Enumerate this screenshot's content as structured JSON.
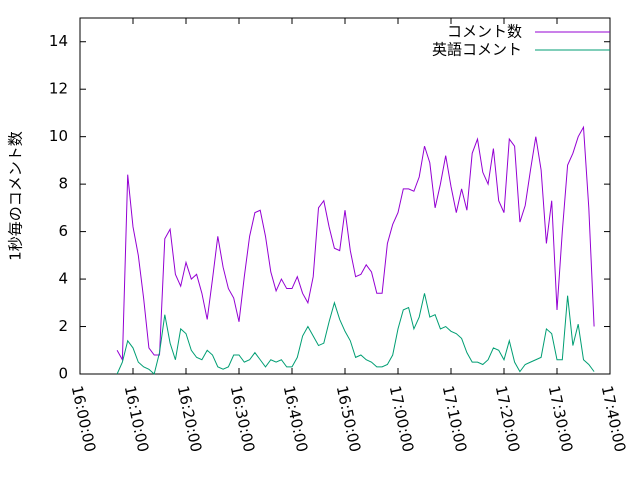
{
  "chart_data": {
    "type": "line",
    "ylabel": "1秒毎のコメント数",
    "x": [
      "16:07:00",
      "16:08:00",
      "16:09:00",
      "16:10:00",
      "16:11:00",
      "16:12:00",
      "16:13:00",
      "16:14:00",
      "16:15:00",
      "16:16:00",
      "16:17:00",
      "16:18:00",
      "16:19:00",
      "16:20:00",
      "16:21:00",
      "16:22:00",
      "16:23:00",
      "16:24:00",
      "16:25:00",
      "16:26:00",
      "16:27:00",
      "16:28:00",
      "16:29:00",
      "16:30:00",
      "16:31:00",
      "16:32:00",
      "16:33:00",
      "16:34:00",
      "16:35:00",
      "16:36:00",
      "16:37:00",
      "16:38:00",
      "16:39:00",
      "16:40:00",
      "16:41:00",
      "16:42:00",
      "16:43:00",
      "16:44:00",
      "16:45:00",
      "16:46:00",
      "16:47:00",
      "16:48:00",
      "16:49:00",
      "16:50:00",
      "16:51:00",
      "16:52:00",
      "16:53:00",
      "16:54:00",
      "16:55:00",
      "16:56:00",
      "16:57:00",
      "16:58:00",
      "16:59:00",
      "17:00:00",
      "17:01:00",
      "17:02:00",
      "17:03:00",
      "17:04:00",
      "17:05:00",
      "17:06:00",
      "17:07:00",
      "17:08:00",
      "17:09:00",
      "17:10:00",
      "17:11:00",
      "17:12:00",
      "17:13:00",
      "17:14:00",
      "17:15:00",
      "17:16:00",
      "17:17:00",
      "17:18:00",
      "17:19:00",
      "17:20:00",
      "17:21:00",
      "17:22:00",
      "17:23:00",
      "17:24:00",
      "17:25:00",
      "17:26:00",
      "17:27:00",
      "17:28:00",
      "17:29:00",
      "17:30:00",
      "17:31:00",
      "17:32:00",
      "17:33:00",
      "17:34:00",
      "17:35:00",
      "17:36:00",
      "17:37:00"
    ],
    "series": [
      {
        "name": "コメント数",
        "color": "#9400d3",
        "values": [
          1.0,
          0.6,
          8.4,
          6.2,
          5.0,
          3.2,
          1.1,
          0.8,
          0.8,
          5.7,
          6.1,
          4.2,
          3.7,
          4.7,
          4.0,
          4.2,
          3.4,
          2.3,
          4.0,
          5.8,
          4.5,
          3.6,
          3.2,
          2.2,
          4.1,
          5.8,
          6.8,
          6.9,
          5.8,
          4.3,
          3.5,
          4.0,
          3.6,
          3.6,
          4.1,
          3.4,
          3.0,
          4.1,
          7.0,
          7.3,
          6.2,
          5.3,
          5.2,
          6.9,
          5.2,
          4.1,
          4.2,
          4.6,
          4.3,
          3.4,
          3.4,
          5.5,
          6.3,
          6.8,
          7.8,
          7.8,
          7.7,
          8.3,
          9.6,
          8.9,
          7.0,
          8.0,
          9.2,
          7.9,
          6.8,
          7.8,
          6.9,
          9.3,
          9.9,
          8.5,
          8.0,
          9.5,
          7.3,
          6.8,
          9.9,
          9.6,
          6.4,
          7.1,
          8.6,
          10.0,
          8.6,
          5.5,
          7.3,
          2.7,
          6.0,
          8.8,
          9.3,
          10.0,
          10.4,
          7.0,
          2.0
        ]
      },
      {
        "name": "英語コメント",
        "color": "#009e73",
        "values": [
          0.0,
          0.5,
          1.4,
          1.1,
          0.5,
          0.3,
          0.2,
          0.0,
          0.9,
          2.5,
          1.3,
          0.6,
          1.9,
          1.7,
          1.0,
          0.7,
          0.6,
          1.0,
          0.8,
          0.3,
          0.2,
          0.3,
          0.8,
          0.8,
          0.5,
          0.6,
          0.9,
          0.6,
          0.3,
          0.6,
          0.5,
          0.6,
          0.3,
          0.3,
          0.7,
          1.6,
          2.0,
          1.6,
          1.2,
          1.3,
          2.2,
          3.0,
          2.3,
          1.8,
          1.4,
          0.7,
          0.8,
          0.6,
          0.5,
          0.3,
          0.3,
          0.4,
          0.8,
          1.9,
          2.7,
          2.8,
          1.9,
          2.4,
          3.4,
          2.4,
          2.5,
          1.9,
          2.0,
          1.8,
          1.7,
          1.5,
          0.9,
          0.5,
          0.5,
          0.4,
          0.6,
          1.1,
          1.0,
          0.6,
          1.4,
          0.5,
          0.1,
          0.4,
          0.5,
          0.6,
          0.7,
          1.9,
          1.7,
          0.6,
          0.6,
          3.3,
          1.2,
          2.1,
          0.6,
          0.4,
          0.1
        ]
      }
    ],
    "xlim": [
      "16:00:00",
      "17:40:00"
    ],
    "xticks": [
      "16:00:00",
      "16:10:00",
      "16:20:00",
      "16:30:00",
      "16:40:00",
      "16:50:00",
      "17:00:00",
      "17:10:00",
      "17:20:00",
      "17:30:00",
      "17:40:00"
    ],
    "ylim": [
      0,
      15
    ],
    "yticks": [
      0,
      2,
      4,
      6,
      8,
      10,
      12,
      14
    ],
    "legend": "top-right"
  }
}
